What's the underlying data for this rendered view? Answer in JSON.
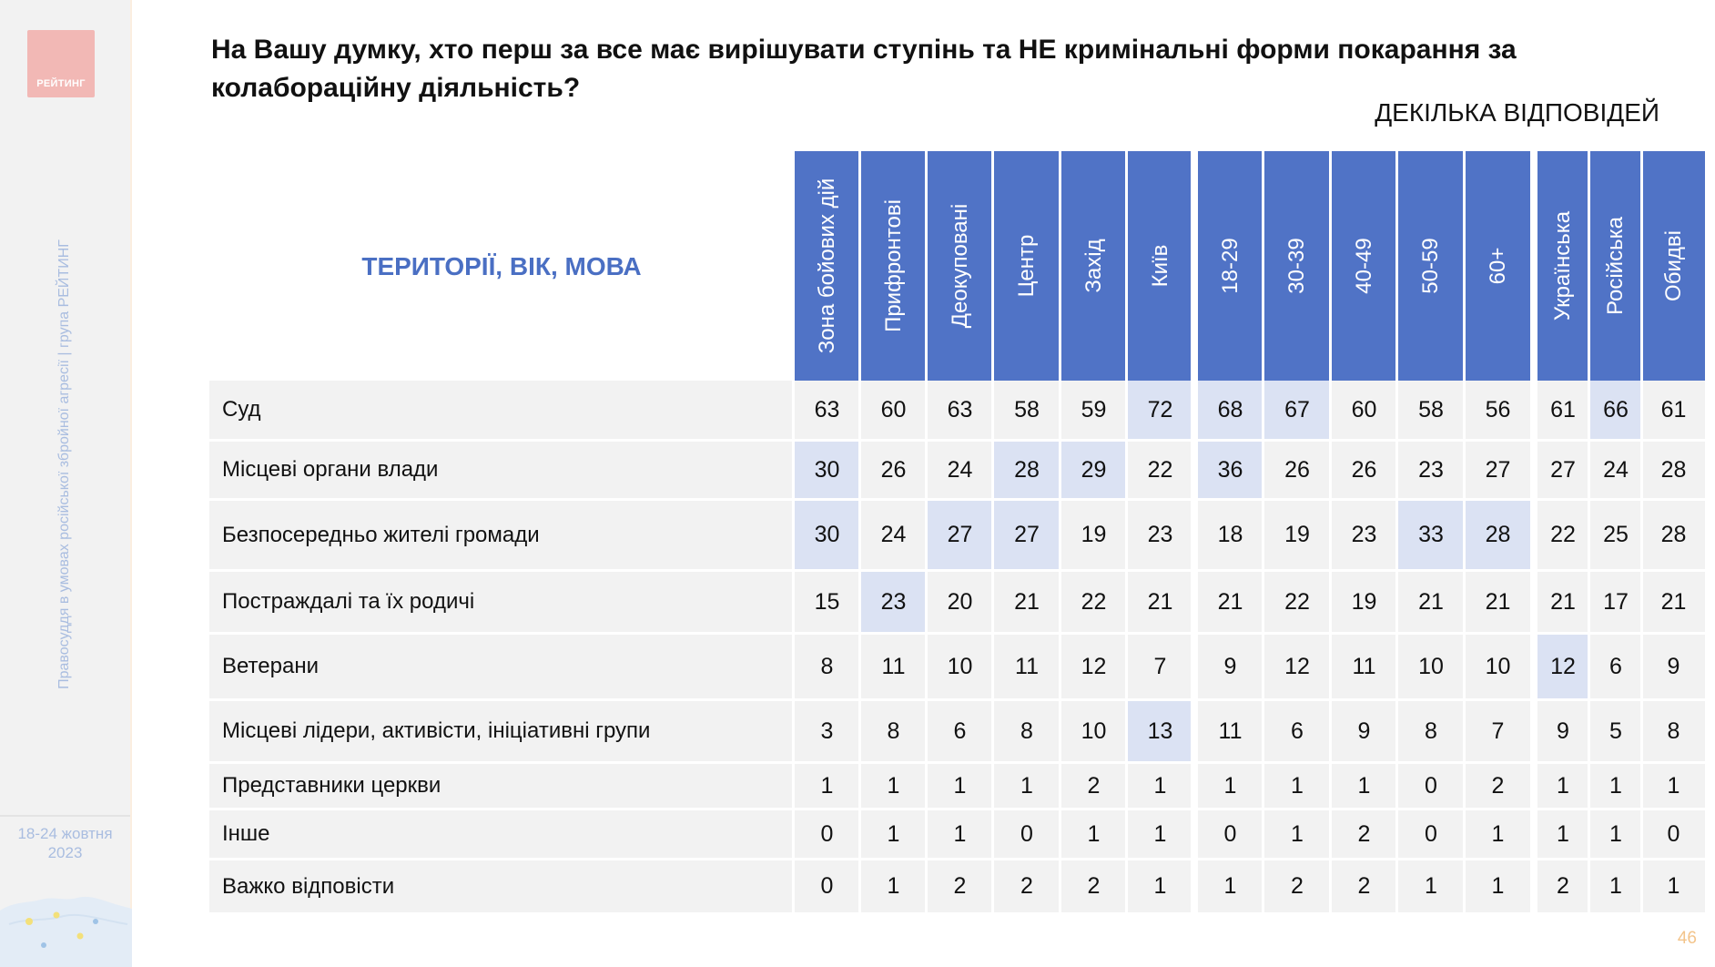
{
  "sidebar": {
    "logo_text": "РЕЙТИНГ",
    "vertical_text": "Правосуддя в умовах російської збройної агресії | група РЕЙТИНГ",
    "date": "18-24 жовтня\n2023"
  },
  "title": "На Вашу думку, хто перш за все має вирішувати ступінь та НЕ кримінальні форми покарання за колабораційну діяльність?",
  "subtitle": "ДЕКІЛЬКА ВІДПОВІДЕЙ",
  "section_label": "ТЕРИТОРІЇ, ВІК, МОВА",
  "columns": [
    "Зона бойових дій",
    "Прифронтові",
    "Деокуповані",
    "Центр",
    "Захід",
    "Київ",
    "18-29",
    "30-39",
    "40-49",
    "50-59",
    "60+",
    "Українська",
    "Російська",
    "Обидві"
  ],
  "rows": [
    {
      "label": "Суд",
      "values": [
        "63",
        "60",
        "63",
        "58",
        "59",
        "72",
        "68",
        "67",
        "60",
        "58",
        "56",
        "61",
        "66",
        "61"
      ],
      "highlight": [
        5,
        6,
        7,
        12
      ]
    },
    {
      "label": "Місцеві органи влади",
      "values": [
        "30",
        "26",
        "24",
        "28",
        "29",
        "22",
        "36",
        "26",
        "26",
        "23",
        "27",
        "27",
        "24",
        "28"
      ],
      "highlight": [
        0,
        3,
        4,
        6
      ]
    },
    {
      "label": "Безпосередньо жителі громади",
      "values": [
        "30",
        "24",
        "27",
        "27",
        "19",
        "23",
        "18",
        "19",
        "23",
        "33",
        "28",
        "22",
        "25",
        "28"
      ],
      "highlight": [
        0,
        2,
        3,
        9,
        10
      ]
    },
    {
      "label": "Постраждалі та їх родичі",
      "values": [
        "15",
        "23",
        "20",
        "21",
        "22",
        "21",
        "21",
        "22",
        "19",
        "21",
        "21",
        "21",
        "17",
        "21"
      ],
      "highlight": [
        1
      ]
    },
    {
      "label": "Ветерани",
      "values": [
        "8",
        "11",
        "10",
        "11",
        "12",
        "7",
        "9",
        "12",
        "11",
        "10",
        "10",
        "12",
        "6",
        "9"
      ],
      "highlight": [
        11
      ]
    },
    {
      "label": "Місцеві лідери, активісти, ініціативні групи",
      "values": [
        "3",
        "8",
        "6",
        "8",
        "10",
        "13",
        "11",
        "6",
        "9",
        "8",
        "7",
        "9",
        "5",
        "8"
      ],
      "highlight": [
        5
      ]
    },
    {
      "label": "Представники церкви",
      "values": [
        "1",
        "1",
        "1",
        "1",
        "2",
        "1",
        "1",
        "1",
        "1",
        "0",
        "2",
        "1",
        "1",
        "1"
      ],
      "highlight": []
    },
    {
      "label": "Інше",
      "values": [
        "0",
        "1",
        "1",
        "0",
        "1",
        "1",
        "0",
        "1",
        "2",
        "0",
        "1",
        "1",
        "1",
        "0"
      ],
      "highlight": []
    },
    {
      "label": "Важко відповісти",
      "values": [
        "0",
        "1",
        "2",
        "2",
        "2",
        "1",
        "1",
        "2",
        "2",
        "1",
        "1",
        "2",
        "1",
        "1"
      ],
      "highlight": []
    }
  ],
  "page_number": "46",
  "colors": {
    "header_blue": "#5073c6",
    "highlight": "#dbe2f3",
    "row_bg": "#f2f2f2",
    "section_label": "#4a6fc3",
    "logo_bg": "#f2b8b5",
    "sidebar_text": "#a9bde0",
    "page_number": "#f3c48b"
  }
}
